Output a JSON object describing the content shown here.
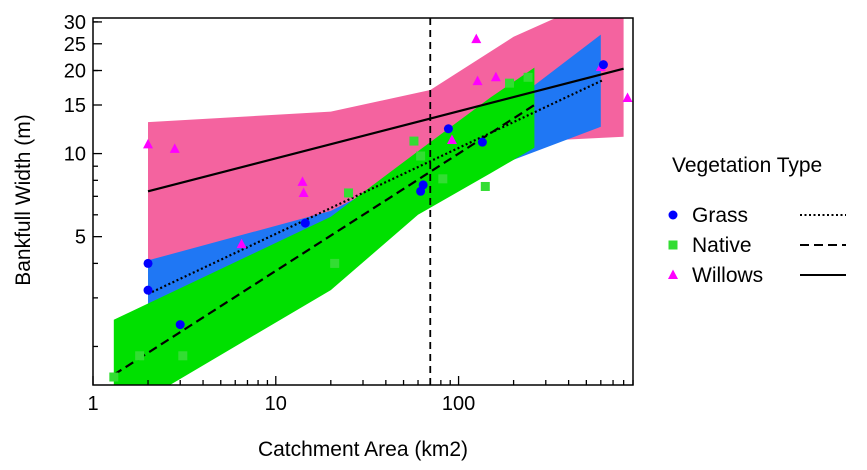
{
  "chart_data": {
    "type": "scatter",
    "title": "",
    "xlabel": "Catchment Area (km2)",
    "ylabel": "Bankfull Width (m)",
    "x_scale": "log",
    "y_scale": "log",
    "xlim": [
      1,
      900
    ],
    "ylim": [
      1.45,
      31
    ],
    "x_ticks": [
      {
        "value": 1,
        "label": "1"
      },
      {
        "value": 10,
        "label": "10"
      },
      {
        "value": 100,
        "label": "100"
      }
    ],
    "y_ticks": [
      {
        "value": 5,
        "label": "5"
      },
      {
        "value": 10,
        "label": "10"
      },
      {
        "value": 15,
        "label": "15"
      },
      {
        "value": 20,
        "label": "20"
      },
      {
        "value": 25,
        "label": "25"
      },
      {
        "value": 30,
        "label": "30"
      }
    ],
    "reference_line": {
      "x": 70,
      "style": "dashed",
      "color": "#000000"
    },
    "legend": {
      "title": "Vegetation Type",
      "placement": "right",
      "entries": [
        {
          "label": "Grass",
          "marker": "circle",
          "line": "dotted"
        },
        {
          "label": "Native",
          "marker": "square",
          "line": "dashed"
        },
        {
          "label": "Willows",
          "marker": "triangle",
          "line": "solid"
        }
      ]
    },
    "series": [
      {
        "name": "Willows",
        "marker": "triangle",
        "color": "#ff00ff",
        "band_color": "#f4639f",
        "line": "solid",
        "points": [
          [
            2.0,
            10.8
          ],
          [
            2.8,
            10.4
          ],
          [
            6.5,
            4.7
          ],
          [
            14,
            7.9
          ],
          [
            14.2,
            7.2
          ],
          [
            92,
            11.2
          ],
          [
            125,
            26
          ],
          [
            127,
            18.3
          ],
          [
            160,
            18.9
          ],
          [
            600,
            20.6
          ],
          [
            840,
            15.9
          ]
        ],
        "fit": {
          "x": [
            2.0,
            800
          ],
          "y": [
            7.3,
            20.3
          ]
        },
        "band": {
          "x": [
            2.0,
            20,
            70,
            200,
            800
          ],
          "upper": [
            13.0,
            14.2,
            17.0,
            26.5,
            40
          ],
          "lower": [
            4.0,
            5.8,
            8.3,
            11.0,
            11.5
          ]
        }
      },
      {
        "name": "Grass",
        "marker": "circle",
        "color": "#0000ff",
        "band_color": "#1f77f4",
        "line": "dotted",
        "points": [
          [
            2.0,
            4.0
          ],
          [
            2.0,
            3.2
          ],
          [
            3.0,
            2.4
          ],
          [
            14.5,
            5.6
          ],
          [
            62,
            7.3
          ],
          [
            64,
            7.7
          ],
          [
            88,
            12.3
          ],
          [
            135,
            11.0
          ],
          [
            620,
            21.0
          ]
        ],
        "fit": {
          "x": [
            2.0,
            620
          ],
          "y": [
            3.1,
            18.5
          ]
        },
        "band": {
          "x": [
            2.0,
            20,
            65,
            200,
            600
          ],
          "upper": [
            4.1,
            6.2,
            9.2,
            15.5,
            27
          ],
          "lower": [
            2.15,
            4.6,
            6.5,
            9.5,
            12.5
          ]
        }
      },
      {
        "name": "Native",
        "marker": "square",
        "color": "#33dd33",
        "band_color": "#00e000",
        "line": "dashed",
        "points": [
          [
            1.3,
            1.55
          ],
          [
            1.8,
            1.85
          ],
          [
            3.1,
            1.85
          ],
          [
            21,
            4.0
          ],
          [
            25,
            7.2
          ],
          [
            57,
            11.1
          ],
          [
            62,
            9.8
          ],
          [
            82,
            8.1
          ],
          [
            140,
            7.6
          ],
          [
            190,
            18.0
          ],
          [
            240,
            18.9
          ]
        ],
        "fit": {
          "x": [
            1.3,
            260
          ],
          "y": [
            1.58,
            15.0
          ]
        },
        "band": {
          "x": [
            1.3,
            20,
            60,
            150,
            260
          ],
          "upper": [
            2.5,
            5.9,
            10.2,
            16.0,
            20.5
          ],
          "lower": [
            1.1,
            3.2,
            6.0,
            8.5,
            10.5
          ]
        }
      }
    ]
  }
}
